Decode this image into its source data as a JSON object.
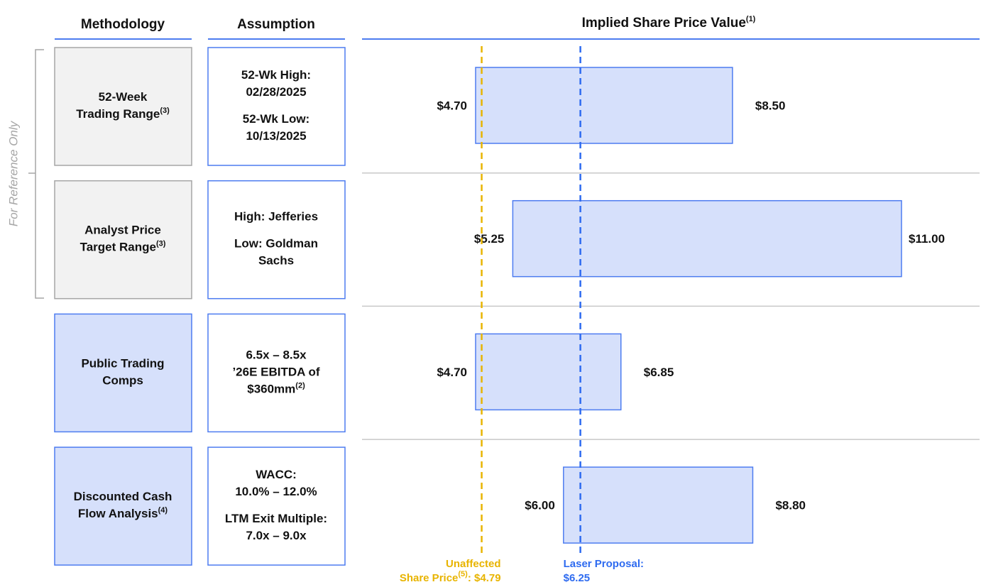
{
  "chart_data": {
    "type": "football-field",
    "headers": {
      "methodology": "Methodology",
      "assumption": "Assumption",
      "value": "Implied Share Price Value",
      "value_note": "(1)"
    },
    "bracket_label": "For Reference Only",
    "rows": [
      {
        "method": [
          "52-Week",
          "Trading Range"
        ],
        "note": "(3)",
        "fill": "#f2f2f2",
        "stroke": "#a6a6a6",
        "assumption": [
          {
            "lines": [
              "52-Wk High:",
              "02/28/2025"
            ]
          },
          {
            "lines": [
              "52-Wk Low:",
              "10/13/2025"
            ]
          }
        ],
        "low": 4.7,
        "low_label": "$4.70",
        "high": 8.5,
        "high_label": "$8.50"
      },
      {
        "method": [
          "Analyst Price",
          "Target Range"
        ],
        "note": "(3)",
        "fill": "#f2f2f2",
        "stroke": "#a6a6a6",
        "assumption": [
          {
            "lines": [
              "High: Jefferies"
            ]
          },
          {
            "lines": [
              "Low: Goldman",
              "Sachs"
            ]
          }
        ],
        "low": 5.25,
        "low_label": "$5.25",
        "high": 11.0,
        "high_label": "$11.00"
      },
      {
        "method": [
          "Public Trading",
          "Comps"
        ],
        "fill": "#d6e0fb",
        "stroke": "#4d7cf0",
        "assumption": [
          {
            "lines": [
              "6.5x – 8.5x",
              "’26E EBITDA of",
              "$360mm"
            ],
            "note": "(2)"
          }
        ],
        "low": 4.7,
        "low_label": "$4.70",
        "high": 6.85,
        "high_label": "$6.85"
      },
      {
        "method": [
          "Discounted Cash",
          "Flow Analysis"
        ],
        "note": "(4)",
        "fill": "#d6e0fb",
        "stroke": "#4d7cf0",
        "assumption": [
          {
            "lines": [
              "WACC:",
              "10.0% – 12.0%"
            ]
          },
          {
            "lines": [
              "LTM Exit Multiple:",
              "7.0x – 9.0x"
            ]
          }
        ],
        "low": 6.0,
        "low_label": "$6.00",
        "high": 8.8,
        "high_label": "$8.80"
      }
    ],
    "bar_fill": "#d6e0fb",
    "bar_stroke": "#4d7cf0",
    "reference_lines": [
      {
        "label_lines": [
          "Unaffected",
          "Share Price"
        ],
        "note": "(5)",
        "separator": ":",
        "value": 4.79,
        "value_label": "$4.79",
        "color": "#e8b400",
        "anchor": "end"
      },
      {
        "label_lines": [
          "Laser Proposal:"
        ],
        "value": 6.25,
        "value_label": "$6.25",
        "color": "#2e6bf0",
        "anchor": "start"
      }
    ]
  }
}
